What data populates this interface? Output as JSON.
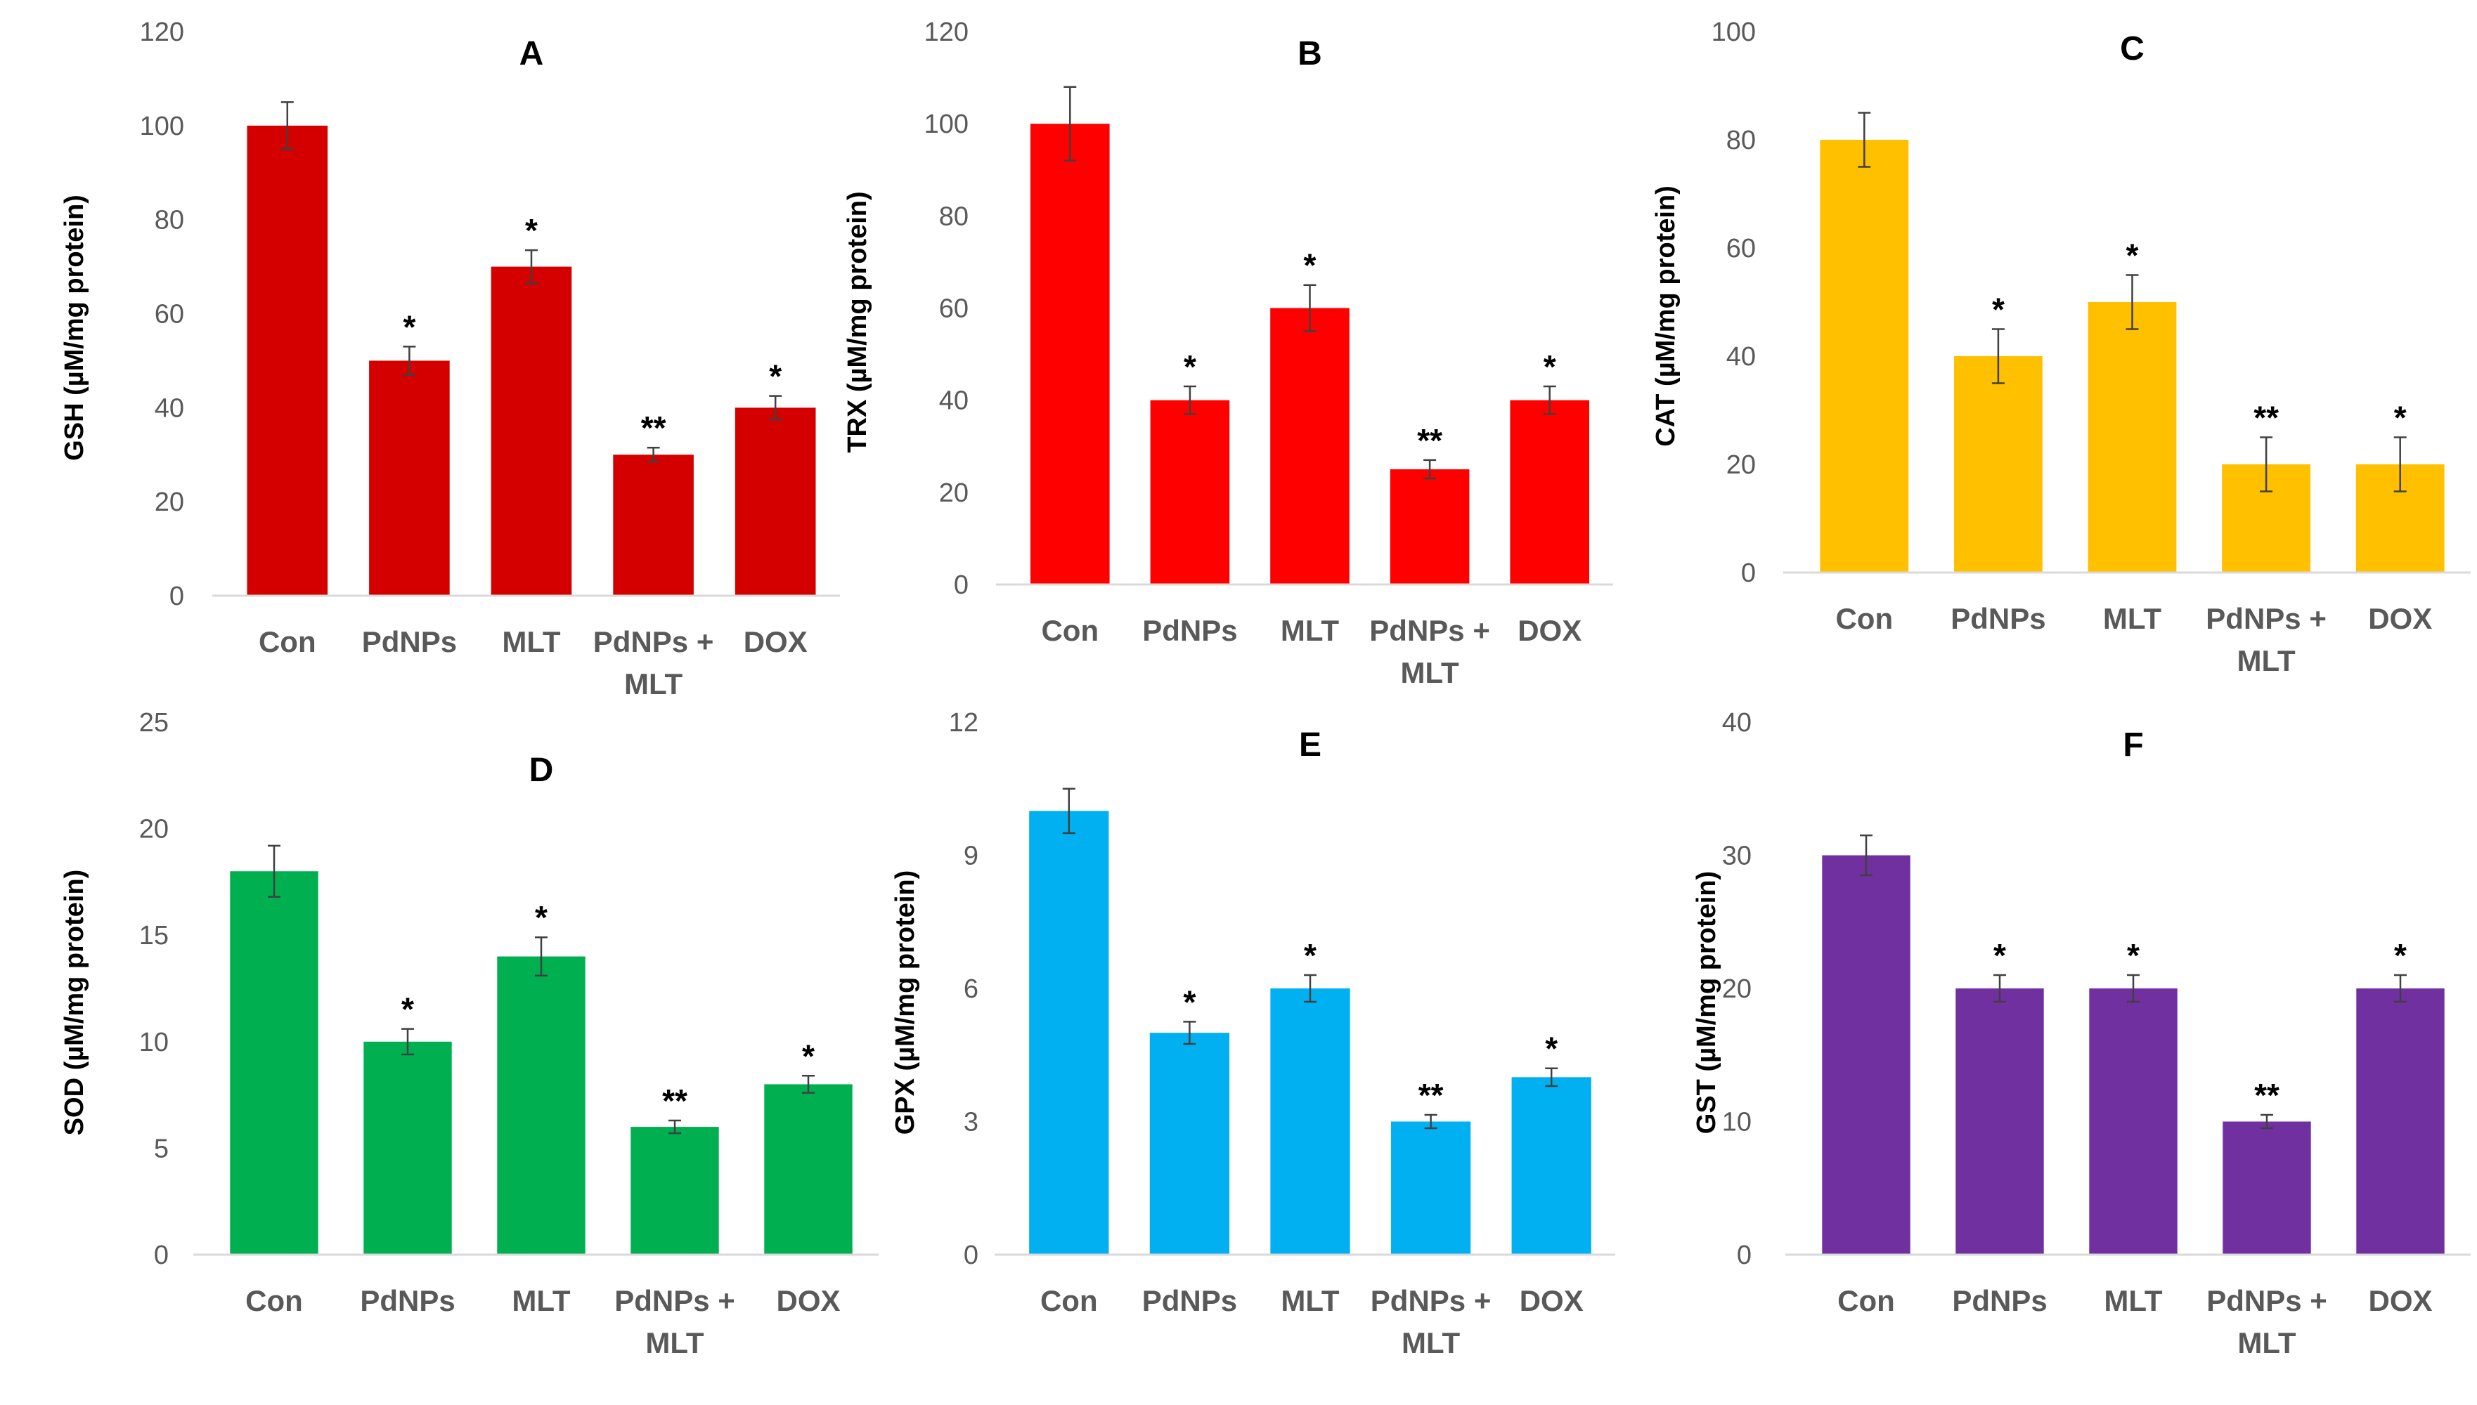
{
  "figure": {
    "categories_note": "Six bar panels of antioxidant markers"
  },
  "chart_data": [
    {
      "type": "bar",
      "panel": "A",
      "title": "A",
      "ylabel": "GSH (µM/mg protein)",
      "ylim": [
        0,
        120
      ],
      "yticks": [
        "0",
        "20",
        "40",
        "60",
        "80",
        "100",
        "120"
      ],
      "categories": [
        [
          "Con"
        ],
        [
          "PdNPs"
        ],
        [
          "MLT"
        ],
        [
          "PdNPs +",
          "MLT"
        ],
        [
          "DOX"
        ]
      ],
      "values": [
        100,
        50,
        70,
        30,
        40
      ],
      "errors": [
        5,
        3,
        3.5,
        1.5,
        2.5
      ],
      "significance": [
        "",
        "*",
        "*",
        "**",
        "*"
      ],
      "color": "#d40000"
    },
    {
      "type": "bar",
      "panel": "B",
      "title": "B",
      "ylabel": "TRX (µM/mg protein)",
      "ylim": [
        0,
        120
      ],
      "yticks": [
        "0",
        "20",
        "40",
        "60",
        "80",
        "100",
        "120"
      ],
      "categories": [
        [
          "Con"
        ],
        [
          "PdNPs"
        ],
        [
          "MLT"
        ],
        [
          "PdNPs +",
          "MLT"
        ],
        [
          "DOX"
        ]
      ],
      "values": [
        100,
        40,
        60,
        25,
        40
      ],
      "errors": [
        8,
        3,
        5,
        2,
        3
      ],
      "significance": [
        "",
        "*",
        "*",
        "**",
        "*"
      ],
      "color": "#ff0000"
    },
    {
      "type": "bar",
      "panel": "C",
      "title": "C",
      "ylabel": "CAT (µM/mg protein)",
      "ylim": [
        0,
        100
      ],
      "yticks": [
        "0",
        "20",
        "40",
        "60",
        "80",
        "100"
      ],
      "categories": [
        [
          "Con"
        ],
        [
          "PdNPs"
        ],
        [
          "MLT"
        ],
        [
          "PdNPs +",
          "MLT"
        ],
        [
          "DOX"
        ]
      ],
      "values": [
        80,
        40,
        50,
        20,
        20
      ],
      "errors": [
        5,
        5,
        5,
        5,
        5
      ],
      "significance": [
        "",
        "*",
        "*",
        "**",
        "*"
      ],
      "color": "#ffc000"
    },
    {
      "type": "bar",
      "panel": "D",
      "title": "D",
      "ylabel": "SOD (µM/mg protein)",
      "ylim": [
        0,
        25
      ],
      "yticks": [
        "0",
        "5",
        "10",
        "15",
        "20",
        "25"
      ],
      "categories": [
        [
          "Con"
        ],
        [
          "PdNPs"
        ],
        [
          "MLT"
        ],
        [
          "PdNPs +",
          "MLT"
        ],
        [
          "DOX"
        ]
      ],
      "values": [
        18,
        10,
        14,
        6,
        8
      ],
      "errors": [
        1.2,
        0.6,
        0.9,
        0.3,
        0.4
      ],
      "significance": [
        "",
        "*",
        "*",
        "**",
        "*"
      ],
      "color": "#00b050"
    },
    {
      "type": "bar",
      "panel": "E",
      "title": "E",
      "ylabel": "GPX (µM/mg protein)",
      "ylim": [
        0,
        12
      ],
      "yticks": [
        "0",
        "3",
        "6",
        "9",
        "12"
      ],
      "categories": [
        [
          "Con"
        ],
        [
          "PdNPs"
        ],
        [
          "MLT"
        ],
        [
          "PdNPs +",
          "MLT"
        ],
        [
          "DOX"
        ]
      ],
      "values": [
        10,
        5,
        6,
        3,
        4
      ],
      "errors": [
        0.5,
        0.25,
        0.3,
        0.15,
        0.2
      ],
      "significance": [
        "",
        "*",
        "*",
        "**",
        "*"
      ],
      "color": "#00b0f0"
    },
    {
      "type": "bar",
      "panel": "F",
      "title": "F",
      "ylabel": "GST (µM/mg protein)",
      "ylim": [
        0,
        40
      ],
      "yticks": [
        "0",
        "10",
        "20",
        "30",
        "40"
      ],
      "categories": [
        [
          "Con"
        ],
        [
          "PdNPs"
        ],
        [
          "MLT"
        ],
        [
          "PdNPs +",
          "MLT"
        ],
        [
          "DOX"
        ]
      ],
      "values": [
        30,
        20,
        20,
        10,
        20
      ],
      "errors": [
        1.5,
        1,
        1,
        0.5,
        1
      ],
      "significance": [
        "",
        "*",
        "*",
        "**",
        "*"
      ],
      "color": "#7030a0"
    }
  ]
}
